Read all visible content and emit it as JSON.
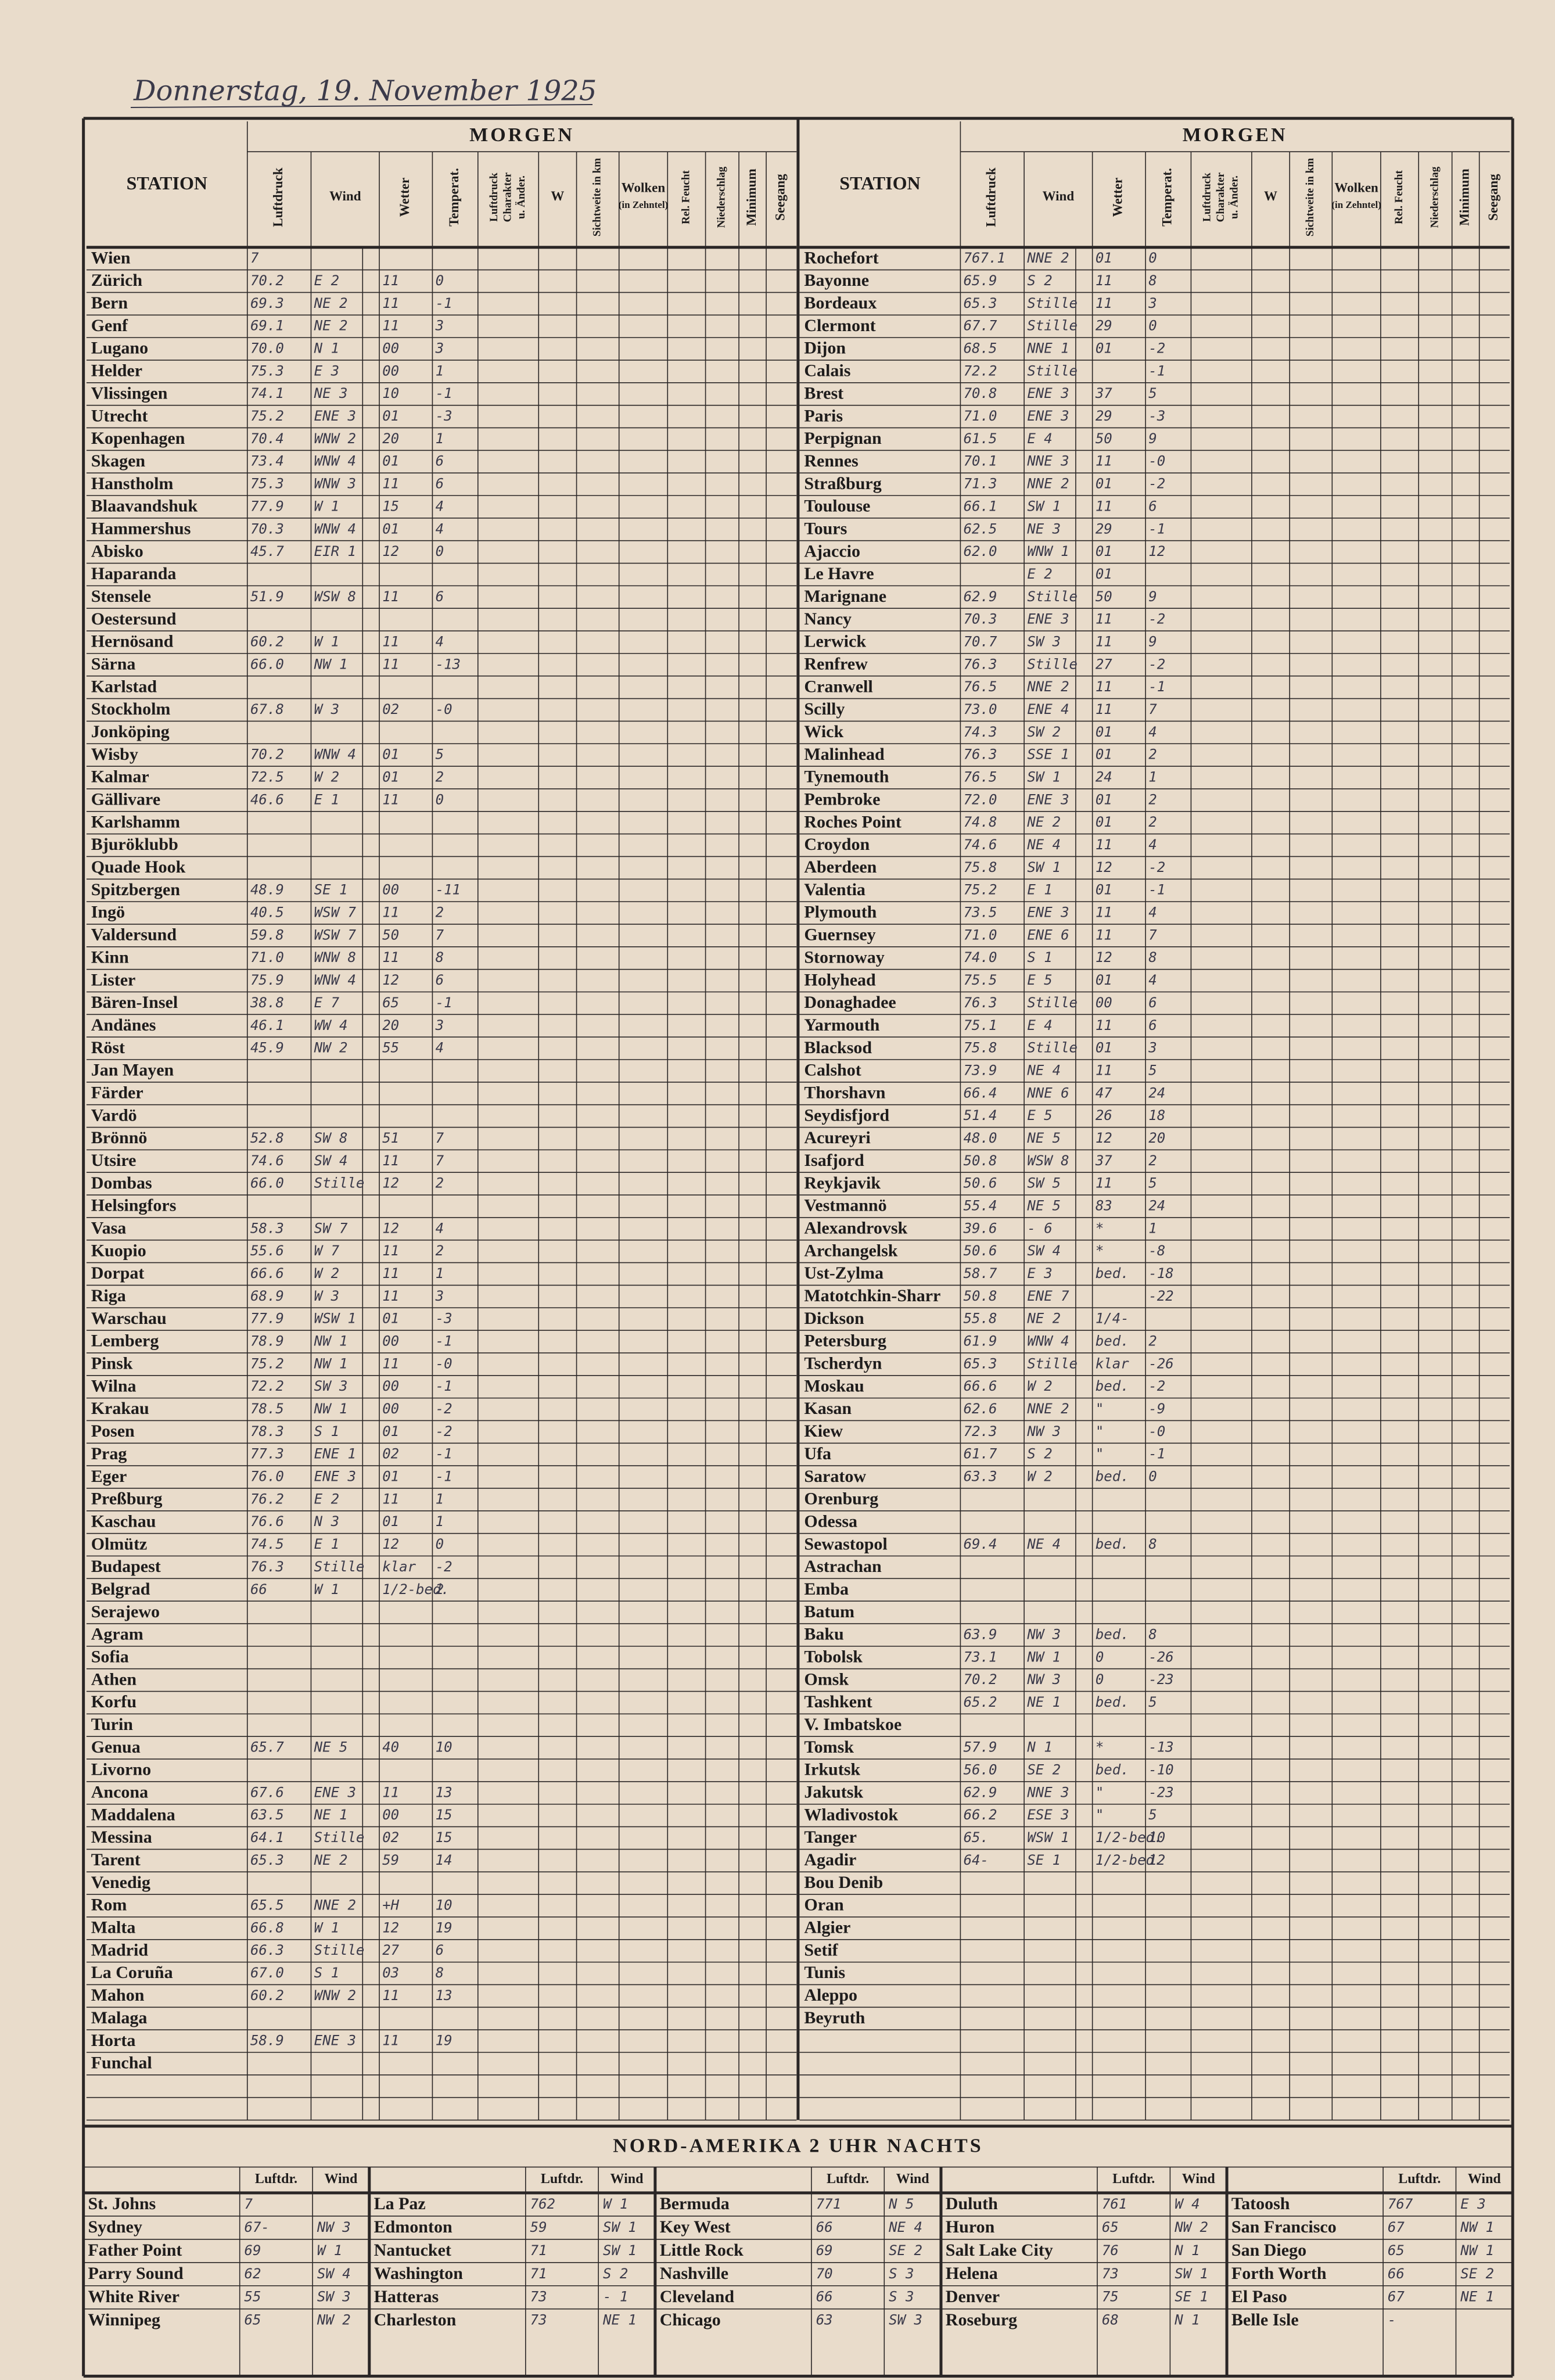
{
  "header": {
    "date": "Donnerstag, 19. November 1925"
  },
  "station_header": "STATION",
  "morgen": "MORGEN",
  "columns": [
    [
      "Luftdruck"
    ],
    [
      "Wind"
    ],
    [
      "Wetter"
    ],
    [
      "Temperat."
    ],
    [
      "Luftdruck",
      "Charakter",
      "u. Änder."
    ],
    [
      "W"
    ],
    [
      "Sichtweite in km"
    ],
    [
      "Wolken",
      "(in Zehntel)"
    ],
    [
      "Rel. Feucht"
    ],
    [
      "Niederschlag"
    ],
    [
      "Minimum"
    ],
    [
      "Seegang"
    ]
  ],
  "left": {
    "rows": [
      [
        "Wien",
        "7"
      ],
      [
        "Zürich",
        "70.2",
        "E 2",
        "11",
        "0"
      ],
      [
        "Bern",
        "69.3",
        "NE 2",
        "11",
        "-1"
      ],
      [
        "Genf",
        "69.1",
        "NE 2",
        "11",
        "3"
      ],
      [
        "Lugano",
        "70.0",
        "N 1",
        "00",
        "3"
      ],
      [
        "Helder",
        "75.3",
        "E 3",
        "00",
        "1"
      ],
      [
        "Vlissingen",
        "74.1",
        "NE 3",
        "10",
        "-1"
      ],
      [
        "Utrecht",
        "75.2",
        "ENE 3",
        "01",
        "-3"
      ],
      [
        "Kopenhagen",
        "70.4",
        "WNW 2",
        "20",
        "1"
      ],
      [
        "Skagen",
        "73.4",
        "WNW 4",
        "01",
        "6"
      ],
      [
        "Hanstholm",
        "75.3",
        "WNW 3",
        "11",
        "6"
      ],
      [
        "Blaavandshuk",
        "77.9",
        "W 1",
        "15",
        "4"
      ],
      [
        "Hammershus",
        "70.3",
        "WNW 4",
        "01",
        "4"
      ],
      [
        "Abisko",
        "45.7",
        "EIR 1",
        "12",
        "0"
      ],
      [
        "Haparanda"
      ],
      [
        "Stensele",
        "51.9",
        "WSW 8",
        "11",
        "6"
      ],
      [
        "Oestersund"
      ],
      [
        "Hernösand",
        "60.2",
        "W 1",
        "11",
        "4"
      ],
      [
        "Särna",
        "66.0",
        "NW 1",
        "11",
        "-13"
      ],
      [
        "Karlstad"
      ],
      [
        "Stockholm",
        "67.8",
        "W 3",
        "02",
        "-0"
      ],
      [
        "Jonköping"
      ],
      [
        "Wisby",
        "70.2",
        "WNW 4",
        "01",
        "5"
      ],
      [
        "Kalmar",
        "72.5",
        "W 2",
        "01",
        "2"
      ],
      [
        "Gällivare",
        "46.6",
        "E 1",
        "11",
        "0"
      ],
      [
        "Karlshamm"
      ],
      [
        "Bjuröklubb"
      ],
      [
        "Quade Hook"
      ],
      [
        "Spitzbergen",
        "48.9",
        "SE 1",
        "00",
        "-11"
      ],
      [
        "Ingö",
        "40.5",
        "WSW 7",
        "11",
        "2"
      ],
      [
        "Valdersund",
        "59.8",
        "WSW 7",
        "50",
        "7"
      ],
      [
        "Kinn",
        "71.0",
        "WNW 8",
        "11",
        "8"
      ],
      [
        "Lister",
        "75.9",
        "WNW 4",
        "12",
        "6"
      ],
      [
        "Bären-Insel",
        "38.8",
        "E 7",
        "65",
        "-1"
      ],
      [
        "Andänes",
        "46.1",
        "WW 4",
        "20",
        "3"
      ],
      [
        "Röst",
        "45.9",
        "NW 2",
        "55",
        "4"
      ],
      [
        "Jan Mayen"
      ],
      [
        "Färder"
      ],
      [
        "Vardö"
      ],
      [
        "Brönnö",
        "52.8",
        "SW 8",
        "51",
        "7"
      ],
      [
        "Utsire",
        "74.6",
        "SW 4",
        "11",
        "7"
      ],
      [
        "Dombas",
        "66.0",
        "Stille",
        "12",
        "2"
      ],
      [
        "Helsingfors"
      ],
      [
        "Vasa",
        "58.3",
        "SW 7",
        "12",
        "4"
      ],
      [
        "Kuopio",
        "55.6",
        "W 7",
        "11",
        "2"
      ],
      [
        "Dorpat",
        "66.6",
        "W 2",
        "11",
        "1"
      ],
      [
        "Riga",
        "68.9",
        "W 3",
        "11",
        "3"
      ],
      [
        "Warschau",
        "77.9",
        "WSW 1",
        "01",
        "-3"
      ],
      [
        "Lemberg",
        "78.9",
        "NW 1",
        "00",
        "-1"
      ],
      [
        "Pinsk",
        "75.2",
        "NW 1",
        "11",
        "-0"
      ],
      [
        "Wilna",
        "72.2",
        "SW 3",
        "00",
        "-1"
      ],
      [
        "Krakau",
        "78.5",
        "NW 1",
        "00",
        "-2"
      ],
      [
        "Posen",
        "78.3",
        "S 1",
        "01",
        "-2"
      ],
      [
        "Prag",
        "77.3",
        "ENE 1",
        "02",
        "-1"
      ],
      [
        "Eger",
        "76.0",
        "ENE 3",
        "01",
        "-1"
      ],
      [
        "Preßburg",
        "76.2",
        "E 2",
        "11",
        "1"
      ],
      [
        "Kaschau",
        "76.6",
        "N 3",
        "01",
        "1"
      ],
      [
        "Olmütz",
        "74.5",
        "E 1",
        "12",
        "0"
      ],
      [
        "Budapest",
        "76.3",
        "Stille",
        "klar",
        "-2"
      ],
      [
        "Belgrad",
        "66",
        "W 1",
        "1/2-bed.",
        "2"
      ],
      [
        "Serajewo"
      ],
      [
        "Agram"
      ],
      [
        "Sofia"
      ],
      [
        "Athen"
      ],
      [
        "Korfu"
      ],
      [
        "Turin"
      ],
      [
        "Genua",
        "65.7",
        "NE 5",
        "40",
        "10"
      ],
      [
        "Livorno"
      ],
      [
        "Ancona",
        "67.6",
        "ENE 3",
        "11",
        "13"
      ],
      [
        "Maddalena",
        "63.5",
        "NE 1",
        "00",
        "15"
      ],
      [
        "Messina",
        "64.1",
        "Stille",
        "02",
        "15"
      ],
      [
        "Tarent",
        "65.3",
        "NE 2",
        "59",
        "14"
      ],
      [
        "Venedig"
      ],
      [
        "Rom",
        "65.5",
        "NNE 2",
        "+H",
        "10"
      ],
      [
        "Malta",
        "66.8",
        "W 1",
        "12",
        "19"
      ],
      [
        "Madrid",
        "66.3",
        "Stille",
        "27",
        "6"
      ],
      [
        "La Coruña",
        "67.0",
        "S 1",
        "03",
        "8"
      ],
      [
        "Mahon",
        "60.2",
        "WNW 2",
        "11",
        "13"
      ],
      [
        "Malaga"
      ],
      [
        "Horta",
        "58.9",
        "ENE 3",
        "11",
        "19"
      ],
      [
        "Funchal"
      ]
    ]
  },
  "right": {
    "rows": [
      [
        "Rochefort",
        "767.1",
        "NNE 2",
        "01",
        "0"
      ],
      [
        "Bayonne",
        "65.9",
        "S 2",
        "11",
        "8"
      ],
      [
        "Bordeaux",
        "65.3",
        "Stille",
        "11",
        "3"
      ],
      [
        "Clermont",
        "67.7",
        "Stille",
        "29",
        "0"
      ],
      [
        "Dijon",
        "68.5",
        "NNE 1",
        "01",
        "-2"
      ],
      [
        "Calais",
        "72.2",
        "Stille",
        null,
        "-1"
      ],
      [
        "Brest",
        "70.8",
        "ENE 3",
        "37",
        "5"
      ],
      [
        "Paris",
        "71.0",
        "ENE 3",
        "29",
        "-3"
      ],
      [
        "Perpignan",
        "61.5",
        "E 4",
        "50",
        "9"
      ],
      [
        "Rennes",
        "70.1",
        "NNE 3",
        "11",
        "-0"
      ],
      [
        "Straßburg",
        "71.3",
        "NNE 2",
        "01",
        "-2"
      ],
      [
        "Toulouse",
        "66.1",
        "SW 1",
        "11",
        "6"
      ],
      [
        "Tours",
        "62.5",
        "NE 3",
        "29",
        "-1"
      ],
      [
        "Ajaccio",
        "62.0",
        "WNW 1",
        "01",
        "12"
      ],
      [
        "Le Havre",
        null,
        "E 2",
        "01"
      ],
      [
        "Marignane",
        "62.9",
        "Stille",
        "50",
        "9"
      ],
      [
        "Nancy",
        "70.3",
        "ENE 3",
        "11",
        "-2"
      ],
      [
        "Lerwick",
        "70.7",
        "SW 3",
        "11",
        "9"
      ],
      [
        "Renfrew",
        "76.3",
        "Stille",
        "27",
        "-2"
      ],
      [
        "Cranwell",
        "76.5",
        "NNE 2",
        "11",
        "-1"
      ],
      [
        "Scilly",
        "73.0",
        "ENE 4",
        "11",
        "7"
      ],
      [
        "Wick",
        "74.3",
        "SW 2",
        "01",
        "4"
      ],
      [
        "Malinhead",
        "76.3",
        "SSE 1",
        "01",
        "2"
      ],
      [
        "Tynemouth",
        "76.5",
        "SW 1",
        "24",
        "1"
      ],
      [
        "Pembroke",
        "72.0",
        "ENE 3",
        "01",
        "2"
      ],
      [
        "Roches Point",
        "74.8",
        "NE 2",
        "01",
        "2"
      ],
      [
        "Croydon",
        "74.6",
        "NE 4",
        "11",
        "4"
      ],
      [
        "Aberdeen",
        "75.8",
        "SW 1",
        "12",
        "-2"
      ],
      [
        "Valentia",
        "75.2",
        "E 1",
        "01",
        "-1"
      ],
      [
        "Plymouth",
        "73.5",
        "ENE 3",
        "11",
        "4"
      ],
      [
        "Guernsey",
        "71.0",
        "ENE 6",
        "11",
        "7"
      ],
      [
        "Stornoway",
        "74.0",
        "S 1",
        "12",
        "8"
      ],
      [
        "Holyhead",
        "75.5",
        "E 5",
        "01",
        "4"
      ],
      [
        "Donaghadee",
        "76.3",
        "Stille",
        "00",
        "6"
      ],
      [
        "Yarmouth",
        "75.1",
        "E 4",
        "11",
        "6"
      ],
      [
        "Blacksod",
        "75.8",
        "Stille",
        "01",
        "3"
      ],
      [
        "Calshot",
        "73.9",
        "NE 4",
        "11",
        "5"
      ],
      [
        "Thorshavn",
        "66.4",
        "NNE 6",
        "47",
        "24"
      ],
      [
        "Seydisfjord",
        "51.4",
        "E 5",
        "26",
        "18"
      ],
      [
        "Acureyri",
        "48.0",
        "NE 5",
        "12",
        "20"
      ],
      [
        "Isafjord",
        "50.8",
        "WSW 8",
        "37",
        "2"
      ],
      [
        "Reykjavik",
        "50.6",
        "SW 5",
        "11",
        "5"
      ],
      [
        "Vestmannö",
        "55.4",
        "NE 5",
        "83",
        "24"
      ],
      [
        "Alexandrovsk",
        "39.6",
        "- 6",
        "*",
        "1"
      ],
      [
        "Archangelsk",
        "50.6",
        "SW 4",
        "*",
        "-8"
      ],
      [
        "Ust-Zylma",
        "58.7",
        "E 3",
        "bed.",
        "-18"
      ],
      [
        "Matotchkin-Sharr",
        "50.8",
        "ENE 7",
        null,
        "-22"
      ],
      [
        "Dickson",
        "55.8",
        "NE 2",
        "1/4-"
      ],
      [
        "Petersburg",
        "61.9",
        "WNW 4",
        "bed.",
        "2"
      ],
      [
        "Tscherdyn",
        "65.3",
        "Stille",
        "klar",
        "-26"
      ],
      [
        "Moskau",
        "66.6",
        "W 2",
        "bed.",
        "-2"
      ],
      [
        "Kasan",
        "62.6",
        "NNE 2",
        "\"",
        "-9"
      ],
      [
        "Kiew",
        "72.3",
        "NW 3",
        "\"",
        "-0"
      ],
      [
        "Ufa",
        "61.7",
        "S 2",
        "\"",
        "-1"
      ],
      [
        "Saratow",
        "63.3",
        "W 2",
        "bed.",
        "0"
      ],
      [
        "Orenburg"
      ],
      [
        "Odessa"
      ],
      [
        "Sewastopol",
        "69.4",
        "NE 4",
        "bed.",
        "8"
      ],
      [
        "Astrachan"
      ],
      [
        "Emba"
      ],
      [
        "Batum"
      ],
      [
        "Baku",
        "63.9",
        "NW 3",
        "bed.",
        "8"
      ],
      [
        "Tobolsk",
        "73.1",
        "NW 1",
        "0",
        "-26"
      ],
      [
        "Omsk",
        "70.2",
        "NW 3",
        "0",
        "-23"
      ],
      [
        "Tashkent",
        "65.2",
        "NE 1",
        "bed.",
        "5"
      ],
      [
        "V. Imbatskoe"
      ],
      [
        "Tomsk",
        "57.9",
        "N 1",
        "*",
        "-13"
      ],
      [
        "Irkutsk",
        "56.0",
        "SE 2",
        "bed.",
        "-10"
      ],
      [
        "Jakutsk",
        "62.9",
        "NNE 3",
        "\"",
        "-23"
      ],
      [
        "Wladivostok",
        "66.2",
        "ESE 3",
        "\"",
        "5"
      ],
      [
        "Tanger",
        "65.",
        "WSW 1",
        "1/2-bed.",
        "10"
      ],
      [
        "Agadir",
        "64-",
        "SE 1",
        "1/2-bed.",
        "12"
      ],
      [
        "Bou Denib"
      ],
      [
        "Oran"
      ],
      [
        "Algier"
      ],
      [
        "Setif"
      ],
      [
        "Tunis"
      ],
      [
        "Aleppo"
      ],
      [
        "Beyruth"
      ]
    ]
  },
  "nord_amerika": {
    "title": "NORD-AMERIKA 2 UHR NACHTS",
    "luftdr": "Luftdr.",
    "wind": "Wind",
    "groups": [
      [
        [
          "St. Johns",
          "7"
        ],
        [
          "Sydney",
          "67-",
          "NW 3"
        ],
        [
          "Father Point",
          "69",
          "W 1"
        ],
        [
          "Parry Sound",
          "62",
          "SW 4"
        ],
        [
          "White River",
          "55",
          "SW 3"
        ],
        [
          "Winnipeg",
          "65",
          "NW 2"
        ]
      ],
      [
        [
          "La Paz",
          "762",
          "W 1"
        ],
        [
          "Edmonton",
          "59",
          "SW 1"
        ],
        [
          "Nantucket",
          "71",
          "SW 1"
        ],
        [
          "Washington",
          "71",
          "S 2"
        ],
        [
          "Hatteras",
          "73",
          "- 1"
        ],
        [
          "Charleston",
          "73",
          "NE 1"
        ]
      ],
      [
        [
          "Bermuda",
          "771",
          "N 5"
        ],
        [
          "Key West",
          "66",
          "NE 4"
        ],
        [
          "Little Rock",
          "69",
          "SE 2"
        ],
        [
          "Nashville",
          "70",
          "S 3"
        ],
        [
          "Cleveland",
          "66",
          "S 3"
        ],
        [
          "Chicago",
          "63",
          "SW 3"
        ]
      ],
      [
        [
          "Duluth",
          "761",
          "W 4"
        ],
        [
          "Huron",
          "65",
          "NW 2"
        ],
        [
          "Salt Lake City",
          "76",
          "N 1"
        ],
        [
          "Helena",
          "73",
          "SW 1"
        ],
        [
          "Denver",
          "75",
          "SE 1"
        ],
        [
          "Roseburg",
          "68",
          "N 1"
        ]
      ],
      [
        [
          "Tatoosh",
          "767",
          "E 3"
        ],
        [
          "San Francisco",
          "67",
          "NW 1"
        ],
        [
          "San Diego",
          "65",
          "NW 1"
        ],
        [
          "Forth Worth",
          "66",
          "SE 2"
        ],
        [
          "El Paso",
          "67",
          "NE 1"
        ],
        [
          "Belle Isle",
          "-"
        ]
      ]
    ]
  }
}
